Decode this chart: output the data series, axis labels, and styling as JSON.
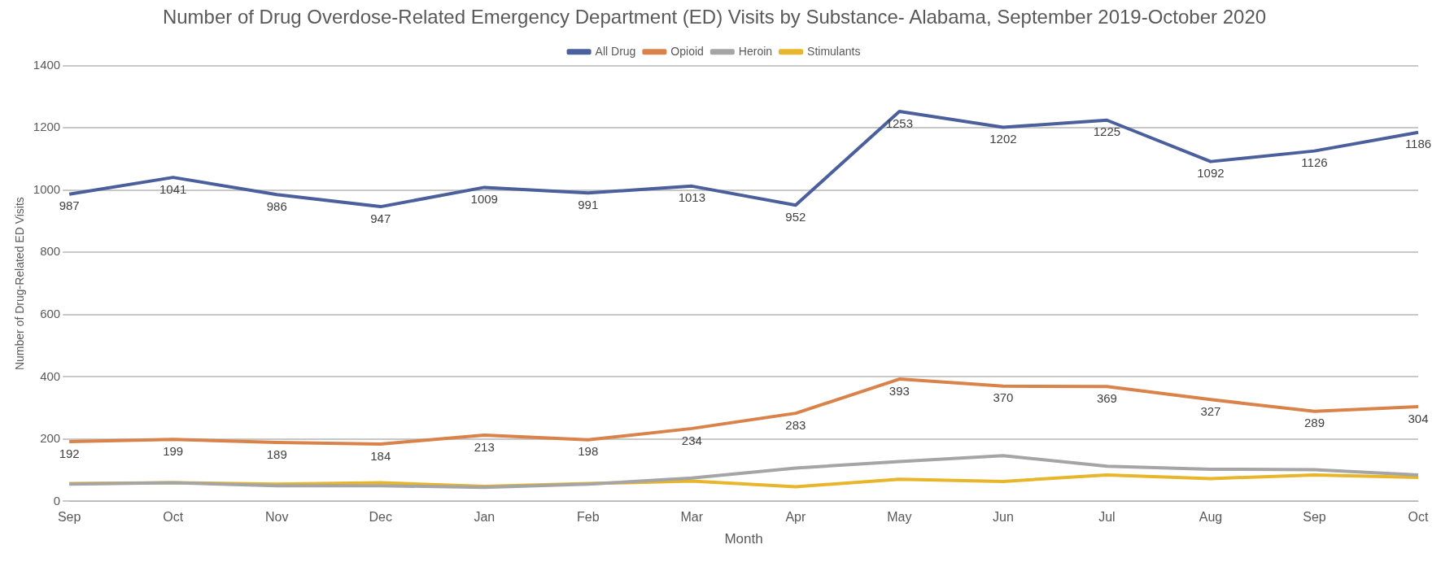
{
  "chart_data": {
    "type": "line",
    "title": "Number of Drug Overdose-Related Emergency Department (ED) Visits by Substance- Alabama, September 2019-October 2020",
    "xlabel": "Month",
    "ylabel": "Number of Drug-Related ED Visits",
    "categories": [
      "Sep",
      "Oct",
      "Nov",
      "Dec",
      "Jan",
      "Feb",
      "Mar",
      "Apr",
      "May",
      "Jun",
      "Jul",
      "Aug",
      "Sep",
      "Oct"
    ],
    "series": [
      {
        "name": "All Drug",
        "color": "#4a5f9c",
        "values": [
          987,
          1041,
          986,
          947,
          1009,
          991,
          1013,
          952,
          1253,
          1202,
          1225,
          1092,
          1126,
          1186
        ],
        "value_labels": [
          "987",
          "1041",
          "986",
          "947",
          "1009",
          "991",
          "1013",
          "952",
          "1253",
          "1202",
          "1225",
          "1092",
          "1126",
          "1186"
        ]
      },
      {
        "name": "Opioid",
        "color": "#d9824a",
        "values": [
          192,
          199,
          189,
          184,
          213,
          198,
          234,
          283,
          393,
          370,
          369,
          327,
          289,
          304
        ],
        "value_labels": [
          "192",
          "199",
          "189",
          "184",
          "213",
          "198",
          "234",
          "283",
          "393",
          "370",
          "369",
          "327",
          "289",
          "304"
        ]
      },
      {
        "name": "Heroin",
        "color": "#a5a5a5",
        "values": [
          55,
          60,
          50,
          50,
          45,
          55,
          75,
          107,
          128,
          147,
          113,
          103,
          102,
          85
        ]
      },
      {
        "name": "Stimulants",
        "color": "#e8b62a",
        "values": [
          57,
          60,
          55,
          60,
          48,
          57,
          65,
          47,
          71,
          64,
          85,
          73,
          85,
          77
        ]
      }
    ],
    "ylim": [
      0,
      1400
    ],
    "yticks": [
      0,
      200,
      400,
      600,
      800,
      1000,
      1200,
      1400
    ],
    "grid": "y",
    "legend": "top",
    "marker": "none"
  }
}
